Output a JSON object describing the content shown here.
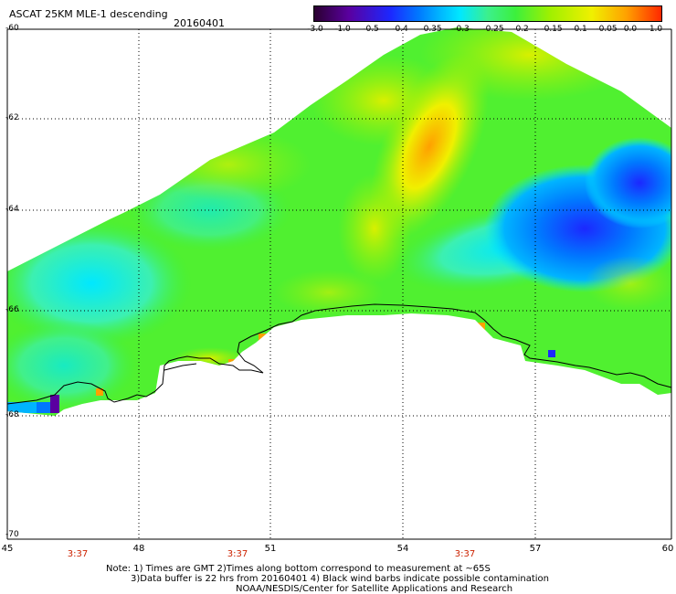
{
  "header": {
    "title": "ASCAT 25KM MLE-1 descending",
    "date": "20160401"
  },
  "colorbar": {
    "labels": [
      "-3.0",
      "-1.0",
      "-0.5",
      "-0.4",
      "-0.35",
      "-0.3",
      "-0.25",
      "-0.2",
      "-0.15",
      "-0.1",
      "-0.05",
      "0.0",
      "1.0"
    ],
    "colors": [
      "#2a0030",
      "#5a00a0",
      "#1c28ff",
      "#0078ff",
      "#00b4ff",
      "#00e8ff",
      "#3cf08c",
      "#3cf03c",
      "#a0f000",
      "#f0f000",
      "#ffa000",
      "#ff2800"
    ]
  },
  "axes": {
    "y_labels": [
      "-60",
      "-62",
      "-64",
      "-66",
      "-68",
      "-70"
    ],
    "x_labels": [
      "45",
      "48",
      "51",
      "54",
      "57",
      "60"
    ],
    "time_labels": [
      "3:37",
      "3:37",
      "3:37"
    ]
  },
  "notes": [
    "Note: 1) Times are GMT 2)Times along bottom correspond to measurement at ~65S",
    "3)Data buffer is 22 hrs from 20160401 4) Black wind barbs indicate possible contamination",
    "NOAA/NESDIS/Center for Satellite Applications and Research"
  ]
}
